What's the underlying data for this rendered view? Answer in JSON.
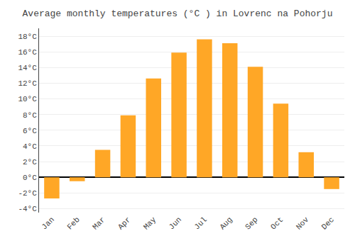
{
  "chart_data": {
    "type": "bar",
    "title": "Average monthly temperatures (°C ) in Lovrenc na Pohorju",
    "categories": [
      "Jan",
      "Feb",
      "Mar",
      "Apr",
      "May",
      "Jun",
      "Jul",
      "Aug",
      "Sep",
      "Oct",
      "Nov",
      "Dec"
    ],
    "values": [
      -2.7,
      -0.5,
      3.5,
      7.9,
      12.6,
      15.9,
      17.6,
      17.1,
      14.1,
      9.4,
      3.2,
      -1.5
    ],
    "color": "#FFA726",
    "ylim": [
      -4.5,
      19
    ],
    "yticks": [
      {
        "value": -4,
        "label": "-4°C"
      },
      {
        "value": -2,
        "label": "-2°C"
      },
      {
        "value": 0,
        "label": "0°C"
      },
      {
        "value": 2,
        "label": "2°C"
      },
      {
        "value": 4,
        "label": "4°C"
      },
      {
        "value": 6,
        "label": "6°C"
      },
      {
        "value": 8,
        "label": "8°C"
      },
      {
        "value": 10,
        "label": "10°C"
      },
      {
        "value": 12,
        "label": "12°C"
      },
      {
        "value": 14,
        "label": "14°C"
      },
      {
        "value": 16,
        "label": "16°C"
      },
      {
        "value": 18,
        "label": "18°C"
      }
    ],
    "grid": true
  }
}
